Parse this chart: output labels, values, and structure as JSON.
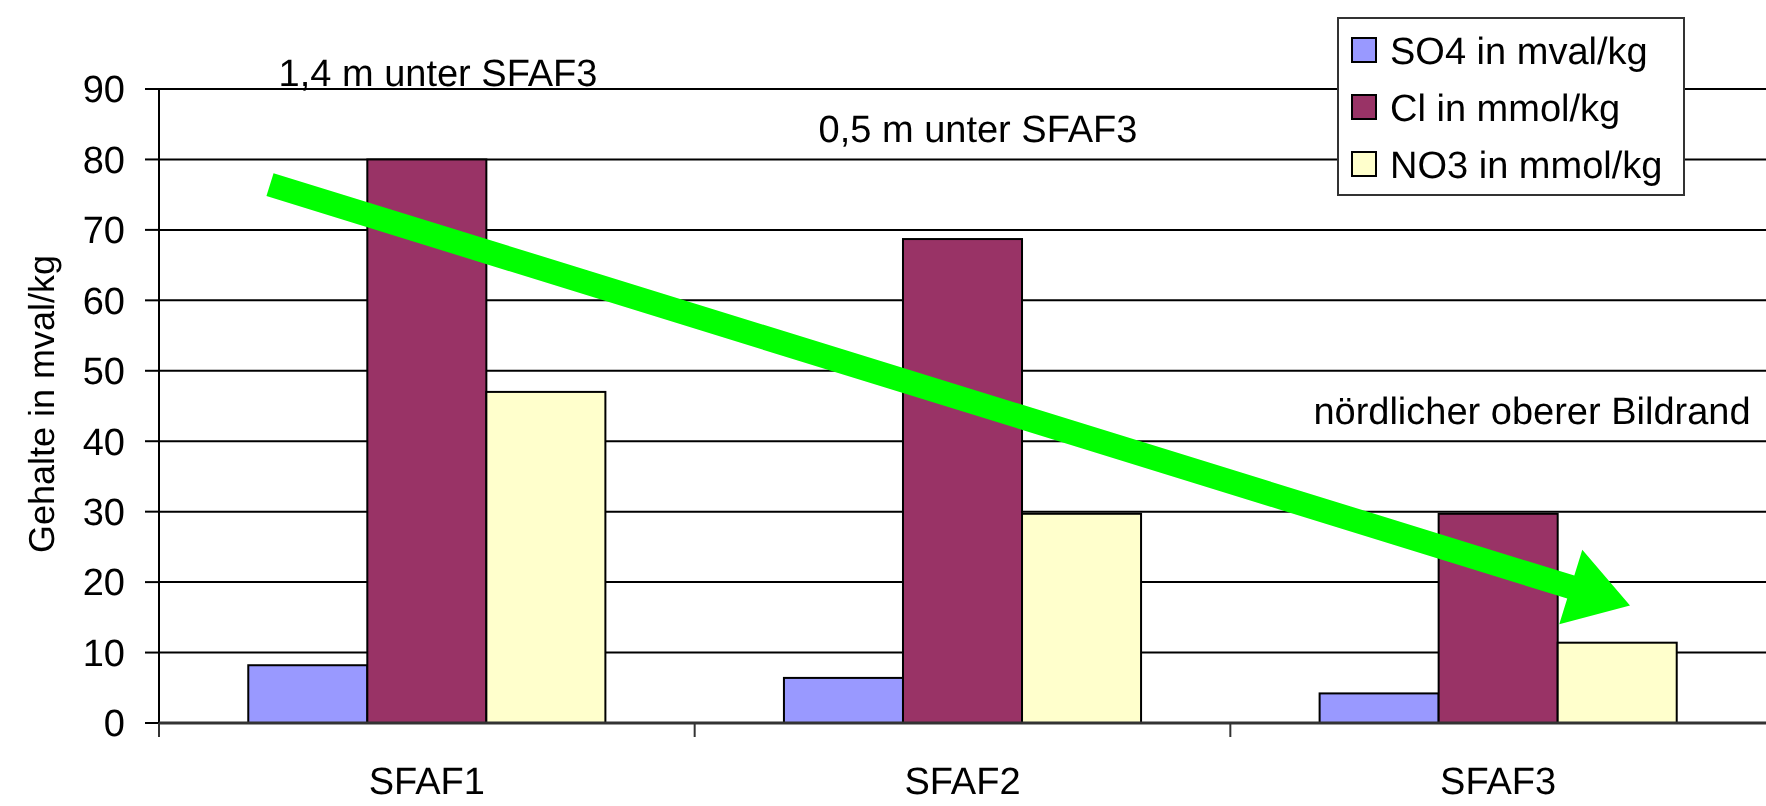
{
  "chart_data": {
    "type": "bar",
    "ylabel": "Gehalte in mval/kg",
    "categories": [
      "SFAF1",
      "SFAF2",
      "SFAF3"
    ],
    "series": [
      {
        "name": "SO4 in mval/kg",
        "color": "#9999ff",
        "values": [
          8.2,
          6.4,
          4.2
        ]
      },
      {
        "name": "Cl in mmol/kg",
        "color": "#993366",
        "values": [
          80,
          68.7,
          29.7
        ]
      },
      {
        "name": "NO3 in mmol/kg",
        "color": "#ffffcc",
        "values": [
          47,
          29.7,
          11.4
        ]
      }
    ],
    "ylim": [
      0,
      90
    ],
    "yticks": [
      0,
      10,
      20,
      30,
      40,
      50,
      60,
      70,
      80,
      90
    ],
    "grid": "y",
    "legend": "top right",
    "annotations": [
      "1,4 m unter SFAF3",
      "0,5 m unter SFAF3",
      "nördlicher oberer Bildrand"
    ]
  }
}
